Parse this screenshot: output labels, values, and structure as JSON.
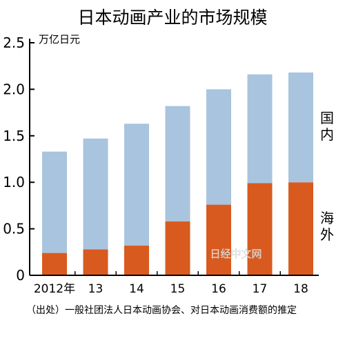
{
  "chart_data": {
    "type": "bar",
    "stacked": true,
    "title": "日本动画产业的市场规模",
    "unit": "万亿日元",
    "categories": [
      "2012年",
      "13",
      "14",
      "15",
      "16",
      "17",
      "18"
    ],
    "series": [
      {
        "name": "海外",
        "color": "#d95a1e",
        "values": [
          0.24,
          0.28,
          0.32,
          0.58,
          0.76,
          0.99,
          1.0
        ]
      },
      {
        "name": "国内",
        "color": "#a8c4de",
        "values": [
          1.09,
          1.19,
          1.31,
          1.24,
          1.24,
          1.17,
          1.18
        ]
      }
    ],
    "totals": [
      1.33,
      1.47,
      1.63,
      1.82,
      2.0,
      2.16,
      2.18
    ],
    "ylim": [
      0,
      2.5
    ],
    "yticks": [
      "0",
      "0.5",
      "1.0",
      "1.5",
      "2.0",
      "2.5"
    ],
    "grid": false,
    "legend": "right"
  },
  "source": "（出处）一般社团法人日本动画协会、对日本动画消费额的推定",
  "watermark": "日经中文网"
}
